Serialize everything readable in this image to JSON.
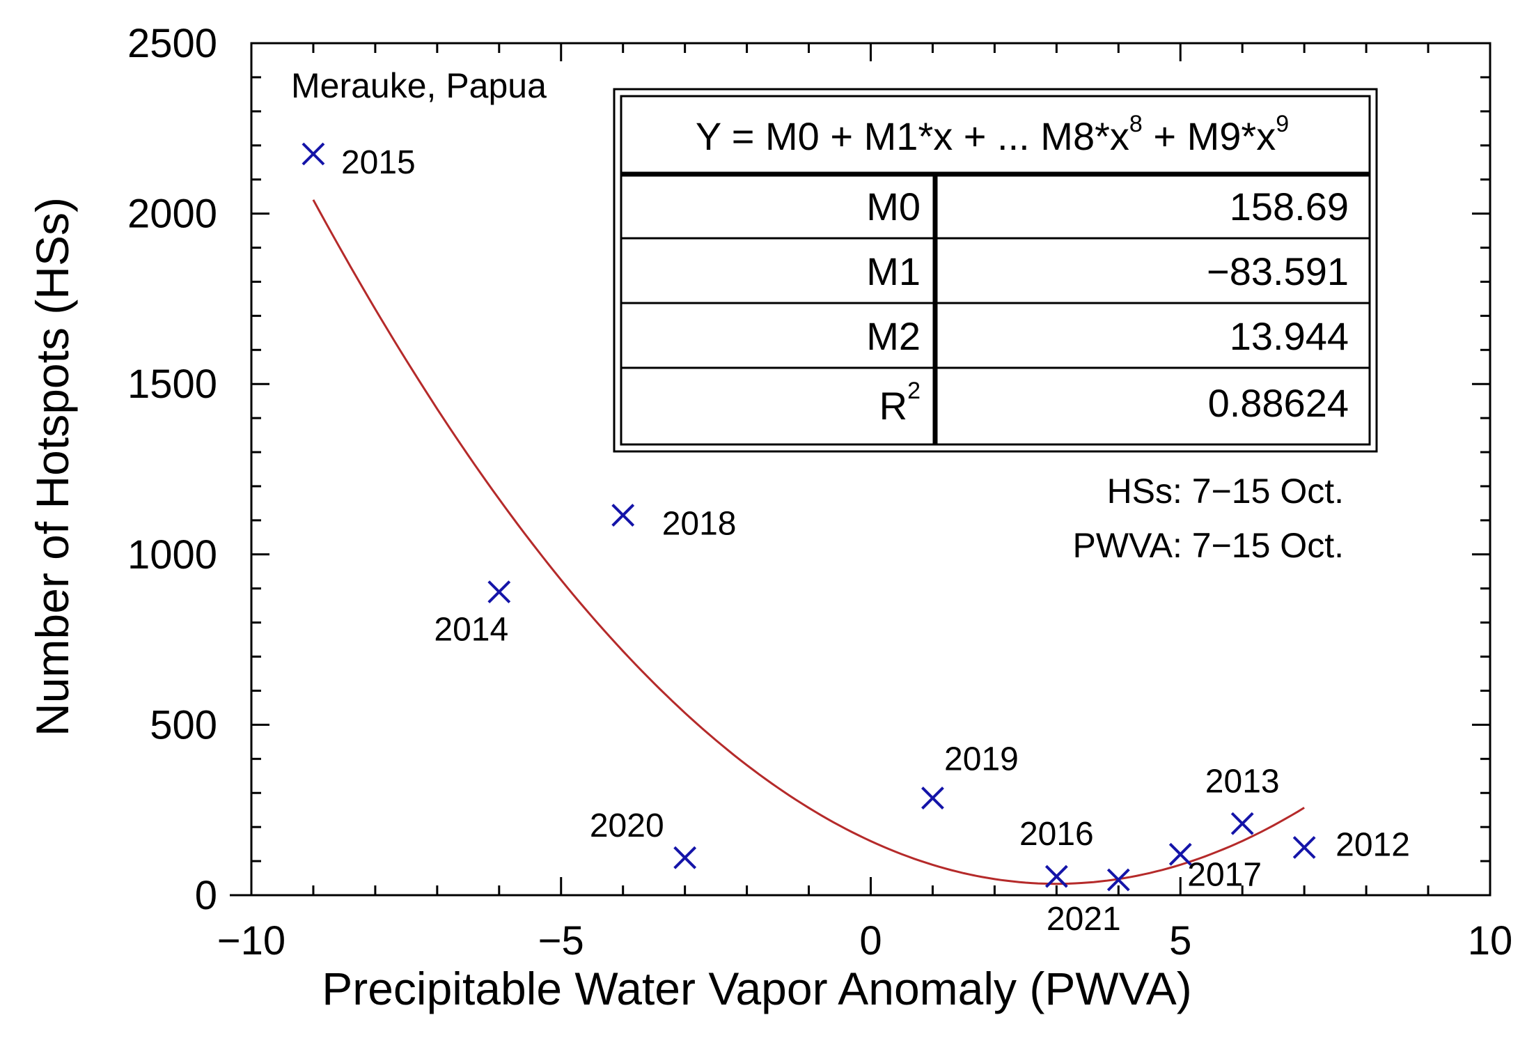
{
  "chart_data": {
    "type": "scatter",
    "title": "",
    "xlabel": "Precipitable Water Vapor Anomaly (PWVA)",
    "ylabel": "Number of Hotspots (HSs)",
    "xlim": [
      -10,
      10
    ],
    "ylim": [
      0,
      2500
    ],
    "x_ticks": [
      -10,
      -5,
      0,
      5,
      10
    ],
    "x_tick_labels": [
      "−10",
      "−5",
      "0",
      "5",
      "10"
    ],
    "y_ticks": [
      0,
      500,
      1000,
      1500,
      2000,
      2500
    ],
    "y_tick_labels": [
      "0",
      "500",
      "1000",
      "1500",
      "2000",
      "2500"
    ],
    "location_label": "Merauke, Papua",
    "points": [
      {
        "year": "2015",
        "x": -9.0,
        "y": 2175
      },
      {
        "year": "2014",
        "x": -6.0,
        "y": 890
      },
      {
        "year": "2018",
        "x": -4.0,
        "y": 1115
      },
      {
        "year": "2020",
        "x": -3.0,
        "y": 110
      },
      {
        "year": "2019",
        "x": 1.0,
        "y": 285
      },
      {
        "year": "2016",
        "x": 3.0,
        "y": 55
      },
      {
        "year": "2021",
        "x": 4.0,
        "y": 45
      },
      {
        "year": "2017",
        "x": 5.0,
        "y": 120
      },
      {
        "year": "2013",
        "x": 6.0,
        "y": 210
      },
      {
        "year": "2012",
        "x": 7.0,
        "y": 140
      }
    ],
    "fit": {
      "equation_label": "Y = M0 + M1*x + ... M8*x",
      "exp8": "8",
      "mid_label": " + M9*x",
      "exp9": "9",
      "x_range": [
        -9.0,
        7.0
      ],
      "coefficients": [
        {
          "name": "M0",
          "value": "158.69"
        },
        {
          "name": "M1",
          "value": "−83.591"
        },
        {
          "name": "M2",
          "value": "13.944"
        }
      ],
      "r2_name": "R",
      "r2_exp": "2",
      "r2_value": "0.88624",
      "M0": 158.69,
      "M1": -83.591,
      "M2": 13.944
    },
    "annotations": [
      "HSs: 7−15 Oct.",
      "PWVA: 7−15 Oct."
    ],
    "colors": {
      "points": "#1414a8",
      "fit": "#b52a2a",
      "axes": "#000000"
    }
  }
}
